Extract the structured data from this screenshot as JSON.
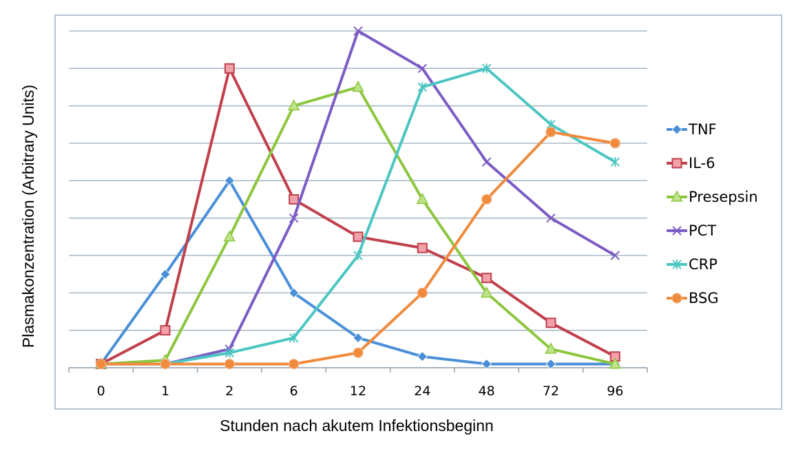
{
  "chart_data": {
    "type": "line",
    "title": "",
    "xlabel": "Stunden nach akutem Infektionsbeginn",
    "ylabel": "Plasmakonzentration (Arbitrary Units)",
    "categories": [
      "0",
      "1",
      "2",
      "6",
      "12",
      "24",
      "48",
      "72",
      "96"
    ],
    "ylim": [
      0,
      9
    ],
    "grid": true,
    "y_tick_labels_shown": false,
    "legend_position": "right",
    "series": [
      {
        "name": "TNF",
        "color": "#4a8fd8",
        "marker": "diamond",
        "values": [
          0.1,
          2.5,
          5.0,
          2.0,
          0.8,
          0.3,
          0.1,
          0.1,
          0.1
        ]
      },
      {
        "name": "IL-6",
        "color": "#c0404c",
        "marker": "square",
        "values": [
          0.1,
          1.0,
          8.0,
          4.5,
          3.5,
          3.2,
          2.4,
          1.2,
          0.3
        ]
      },
      {
        "name": "Presepsin",
        "color": "#8dc63f",
        "marker": "triangle",
        "values": [
          0.1,
          0.2,
          3.5,
          7.0,
          7.5,
          4.5,
          2.0,
          0.5,
          0.1
        ]
      },
      {
        "name": "PCT",
        "color": "#7c5cc4",
        "marker": "x",
        "values": [
          0.1,
          0.1,
          0.5,
          4.0,
          9.0,
          8.0,
          5.5,
          4.0,
          3.0
        ]
      },
      {
        "name": "CRP",
        "color": "#4cc6c2",
        "marker": "asterisk",
        "values": [
          0.1,
          0.1,
          0.4,
          0.8,
          3.0,
          7.5,
          8.0,
          6.5,
          5.5
        ]
      },
      {
        "name": "BSG",
        "color": "#f08a3c",
        "marker": "circle",
        "values": [
          0.1,
          0.1,
          0.1,
          0.1,
          0.4,
          2.0,
          4.5,
          6.3,
          6.0
        ]
      }
    ]
  }
}
